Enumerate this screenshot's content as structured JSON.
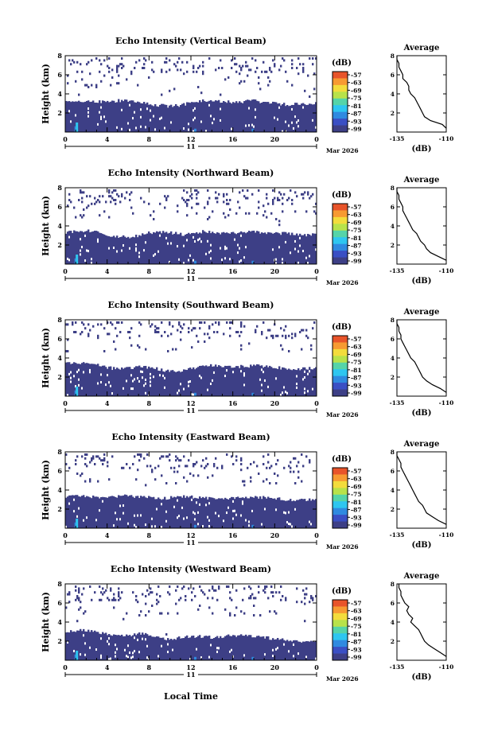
{
  "figure": {
    "xlabel": "Local Time",
    "date_label": "Mar 2026",
    "day_label": "11"
  },
  "colorbar": {
    "unit": "(dB)",
    "ticks": [
      "-57",
      "-63",
      "-69",
      "-75",
      "-81",
      "-87",
      "-93",
      "-99"
    ],
    "colors": [
      "#e8542a",
      "#f79a32",
      "#f3dc3c",
      "#b8e24a",
      "#55d4a8",
      "#2ec6f0",
      "#2f8ae0",
      "#3a4fc4",
      "#3d3f86"
    ]
  },
  "chart_data": [
    {
      "type": "heatmap",
      "title": "Echo Intensity (Vertical Beam)",
      "ylabel": "Height (km)",
      "xlim": [
        0,
        24
      ],
      "ylim": [
        0,
        8
      ],
      "x_ticks": [
        "0",
        "4",
        "8",
        "12",
        "16",
        "20",
        "0"
      ],
      "y_ticks": [
        "2",
        "4",
        "6",
        "8"
      ],
      "echo_top_km": [
        3.2,
        3.3,
        3.3,
        3.2,
        3.1,
        3.3,
        3.2,
        3.1,
        2.9,
        2.8,
        2.7,
        2.8,
        3.1,
        3.3,
        3.2,
        3.2,
        3.1,
        3.2,
        3.3,
        3.1,
        3.0,
        2.9,
        2.9,
        3.0,
        3.1
      ],
      "inset": {
        "title": "Average",
        "xlabel": "(dB)",
        "x_ticks": [
          "-135",
          "-110"
        ],
        "y_ticks": [
          "2",
          "4",
          "6",
          "8"
        ],
        "xlim": [
          -135,
          -110
        ],
        "ylim": [
          0,
          8
        ],
        "profile": [
          [
            0.4,
            -110
          ],
          [
            0.8,
            -112
          ],
          [
            1.2,
            -118
          ],
          [
            1.6,
            -121
          ],
          [
            2.0,
            -122
          ],
          [
            2.4,
            -123
          ],
          [
            2.8,
            -124
          ],
          [
            3.2,
            -125
          ],
          [
            3.6,
            -126
          ],
          [
            4.0,
            -128
          ],
          [
            4.4,
            -129
          ],
          [
            4.8,
            -129
          ],
          [
            5.2,
            -130
          ],
          [
            5.6,
            -132
          ],
          [
            6.0,
            -132
          ],
          [
            6.4,
            -133
          ],
          [
            6.8,
            -134
          ],
          [
            7.2,
            -134
          ],
          [
            7.6,
            -135
          ],
          [
            8.0,
            -135
          ]
        ]
      }
    },
    {
      "type": "heatmap",
      "title": "Echo Intensity (Northward Beam)",
      "ylabel": "Height (km)",
      "xlim": [
        0,
        24
      ],
      "ylim": [
        0,
        8
      ],
      "x_ticks": [
        "0",
        "4",
        "8",
        "12",
        "16",
        "20",
        "0"
      ],
      "y_ticks": [
        "2",
        "4",
        "6",
        "8"
      ],
      "echo_top_km": [
        3.3,
        3.4,
        3.5,
        3.3,
        3.0,
        2.9,
        2.8,
        3.0,
        3.3,
        3.4,
        3.3,
        3.1,
        3.2,
        3.4,
        3.3,
        3.2,
        3.2,
        3.3,
        3.4,
        3.3,
        3.2,
        3.2,
        3.1,
        3.0,
        3.1
      ],
      "inset": {
        "title": "Average",
        "xlabel": "(dB)",
        "x_ticks": [
          "-135",
          "-110"
        ],
        "y_ticks": [
          "2",
          "4",
          "6",
          "8"
        ],
        "xlim": [
          -135,
          -110
        ],
        "ylim": [
          0,
          8
        ],
        "profile": [
          [
            0.4,
            -110
          ],
          [
            0.8,
            -114
          ],
          [
            1.2,
            -118
          ],
          [
            1.6,
            -120
          ],
          [
            2.0,
            -121
          ],
          [
            2.4,
            -123
          ],
          [
            2.8,
            -124
          ],
          [
            3.2,
            -125
          ],
          [
            3.6,
            -127
          ],
          [
            4.0,
            -128
          ],
          [
            4.4,
            -129
          ],
          [
            4.8,
            -130
          ],
          [
            5.2,
            -131
          ],
          [
            5.6,
            -132
          ],
          [
            6.0,
            -132
          ],
          [
            6.4,
            -133
          ],
          [
            6.8,
            -134
          ],
          [
            7.2,
            -134
          ],
          [
            7.6,
            -135
          ],
          [
            8.0,
            -135
          ]
        ]
      }
    },
    {
      "type": "heatmap",
      "title": "Echo Intensity (Southward Beam)",
      "ylabel": "Height (km)",
      "xlim": [
        0,
        24
      ],
      "ylim": [
        0,
        8
      ],
      "x_ticks": [
        "0",
        "4",
        "8",
        "12",
        "16",
        "20",
        "0"
      ],
      "y_ticks": [
        "2",
        "4",
        "6",
        "8"
      ],
      "echo_top_km": [
        3.4,
        3.5,
        3.4,
        3.3,
        3.0,
        2.8,
        2.9,
        3.2,
        3.0,
        2.8,
        2.6,
        2.7,
        2.9,
        3.1,
        3.2,
        3.2,
        3.1,
        3.1,
        3.2,
        3.1,
        3.0,
        2.9,
        2.8,
        2.9,
        3.0
      ],
      "inset": {
        "title": "Average",
        "xlabel": "(dB)",
        "x_ticks": [
          "-135",
          "-110"
        ],
        "y_ticks": [
          "2",
          "4",
          "6",
          "8"
        ],
        "xlim": [
          -135,
          -110
        ],
        "ylim": [
          0,
          8
        ],
        "profile": [
          [
            0.4,
            -110
          ],
          [
            0.8,
            -113
          ],
          [
            1.2,
            -117
          ],
          [
            1.6,
            -120
          ],
          [
            2.0,
            -122
          ],
          [
            2.4,
            -123
          ],
          [
            2.8,
            -124
          ],
          [
            3.2,
            -125
          ],
          [
            3.6,
            -126
          ],
          [
            4.0,
            -128
          ],
          [
            4.4,
            -129
          ],
          [
            4.8,
            -130
          ],
          [
            5.2,
            -131
          ],
          [
            5.6,
            -132
          ],
          [
            6.0,
            -133
          ],
          [
            6.4,
            -133
          ],
          [
            6.8,
            -134
          ],
          [
            7.2,
            -134
          ],
          [
            7.6,
            -135
          ],
          [
            8.0,
            -135
          ]
        ]
      }
    },
    {
      "type": "heatmap",
      "title": "Echo Intensity (Eastward Beam)",
      "ylabel": "Height (km)",
      "xlim": [
        0,
        24
      ],
      "ylim": [
        0,
        8
      ],
      "x_ticks": [
        "0",
        "4",
        "8",
        "12",
        "16",
        "20",
        "0"
      ],
      "y_ticks": [
        "2",
        "4",
        "6",
        "8"
      ],
      "echo_top_km": [
        3.3,
        3.4,
        3.3,
        3.3,
        3.2,
        3.3,
        3.4,
        3.3,
        3.2,
        3.1,
        3.2,
        3.3,
        3.3,
        3.2,
        3.1,
        3.1,
        3.2,
        3.3,
        3.3,
        3.2,
        3.1,
        3.0,
        2.9,
        3.0,
        3.1
      ],
      "inset": {
        "title": "Average",
        "xlabel": "(dB)",
        "x_ticks": [
          "-135",
          "-110"
        ],
        "y_ticks": [
          "2",
          "4",
          "6",
          "8"
        ],
        "xlim": [
          -135,
          -110
        ],
        "ylim": [
          0,
          8
        ],
        "profile": [
          [
            0.4,
            -110
          ],
          [
            0.8,
            -114
          ],
          [
            1.2,
            -117
          ],
          [
            1.6,
            -120
          ],
          [
            2.0,
            -121
          ],
          [
            2.4,
            -122
          ],
          [
            2.8,
            -124
          ],
          [
            3.2,
            -125
          ],
          [
            3.6,
            -126
          ],
          [
            4.0,
            -127
          ],
          [
            4.4,
            -128
          ],
          [
            4.8,
            -129
          ],
          [
            5.2,
            -130
          ],
          [
            5.6,
            -131
          ],
          [
            6.0,
            -132
          ],
          [
            6.4,
            -133
          ],
          [
            6.8,
            -133
          ],
          [
            7.2,
            -134
          ],
          [
            7.6,
            -135
          ],
          [
            8.0,
            -135
          ]
        ]
      }
    },
    {
      "type": "heatmap",
      "title": "Echo Intensity (Westward Beam)",
      "ylabel": "Height (km)",
      "xlim": [
        0,
        24
      ],
      "ylim": [
        0,
        8
      ],
      "x_ticks": [
        "0",
        "4",
        "8",
        "12",
        "16",
        "20",
        "0"
      ],
      "y_ticks": [
        "2",
        "4",
        "6",
        "8"
      ],
      "echo_top_km": [
        3.0,
        3.1,
        3.1,
        3.0,
        2.7,
        2.5,
        2.6,
        2.8,
        2.6,
        2.3,
        2.2,
        2.4,
        2.5,
        2.5,
        2.4,
        2.5,
        2.6,
        2.6,
        2.5,
        2.4,
        2.2,
        2.1,
        2.0,
        2.0,
        2.1
      ],
      "inset": {
        "title": "Average",
        "xlabel": "(dB)",
        "x_ticks": [
          "-135",
          "-110"
        ],
        "y_ticks": [
          "2",
          "4",
          "6",
          "8"
        ],
        "xlim": [
          -135,
          -110
        ],
        "ylim": [
          0,
          8
        ],
        "profile": [
          [
            0.4,
            -110
          ],
          [
            0.8,
            -113
          ],
          [
            1.2,
            -116
          ],
          [
            1.6,
            -119
          ],
          [
            2.0,
            -121
          ],
          [
            2.4,
            -122
          ],
          [
            2.8,
            -123
          ],
          [
            3.2,
            -124
          ],
          [
            3.6,
            -126
          ],
          [
            4.0,
            -128
          ],
          [
            4.4,
            -127
          ],
          [
            4.8,
            -129
          ],
          [
            5.2,
            -130
          ],
          [
            5.6,
            -129
          ],
          [
            6.0,
            -131
          ],
          [
            6.4,
            -132
          ],
          [
            6.8,
            -133
          ],
          [
            7.2,
            -133
          ],
          [
            7.6,
            -134
          ],
          [
            8.0,
            -134
          ]
        ]
      }
    }
  ]
}
